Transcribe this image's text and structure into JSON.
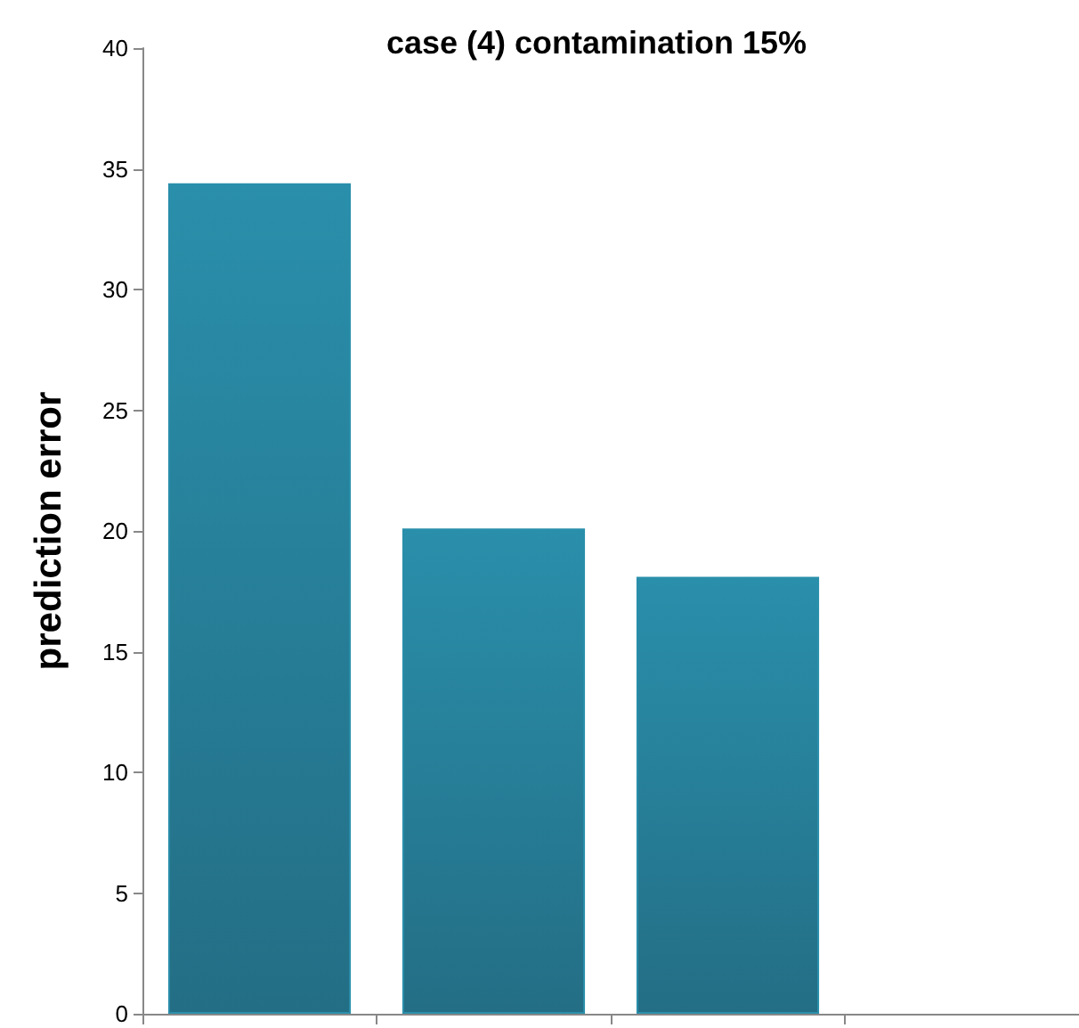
{
  "chart_data": {
    "type": "bar",
    "title": "case (4) contamination 15%",
    "ylabel": "prediction error",
    "categories": [
      null,
      null,
      null,
      null
    ],
    "series": [
      {
        "color": "#2a8fab",
        "values": [
          34.4,
          20.1,
          18.1,
          null
        ]
      }
    ],
    "ylim": [
      0,
      40
    ],
    "yticks": [
      0,
      5,
      10,
      15,
      20,
      25,
      30,
      35,
      40
    ],
    "grid": false
  }
}
